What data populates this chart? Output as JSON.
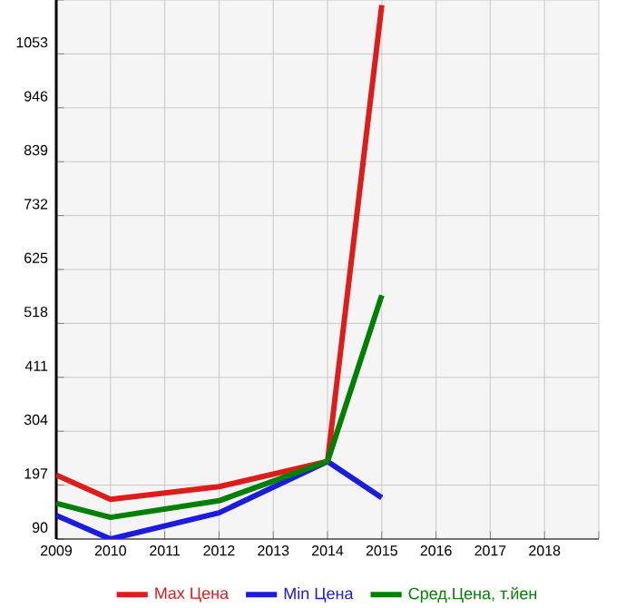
{
  "chart_data": {
    "type": "line",
    "x": [
      2009,
      2010,
      2012,
      2014,
      2015
    ],
    "series": [
      {
        "name": "Max Цена",
        "color": "#dd1c1c",
        "values": [
          217,
          169,
          194,
          244,
          1150
        ]
      },
      {
        "name": "Min Цена",
        "color": "#1c1cdd",
        "values": [
          137,
          90,
          142,
          244,
          172
        ]
      },
      {
        "name": "Сред.Цена, т.йен",
        "color": "#008000",
        "values": [
          161,
          133,
          166,
          244,
          574
        ]
      }
    ],
    "xlim": [
      2009,
      2019
    ],
    "xticks": [
      2009,
      2010,
      2011,
      2012,
      2013,
      2014,
      2015,
      2016,
      2017,
      2018,
      {
        "value": 2019,
        "label": null
      }
    ],
    "ylim": [
      90,
      1160
    ],
    "yticks": [
      90,
      197,
      304,
      411,
      518,
      625,
      732,
      839,
      946,
      1053,
      {
        "value": 1160,
        "label": null
      }
    ],
    "grid": true,
    "legend": "bottom",
    "marker": "none",
    "line_style": "solid"
  }
}
